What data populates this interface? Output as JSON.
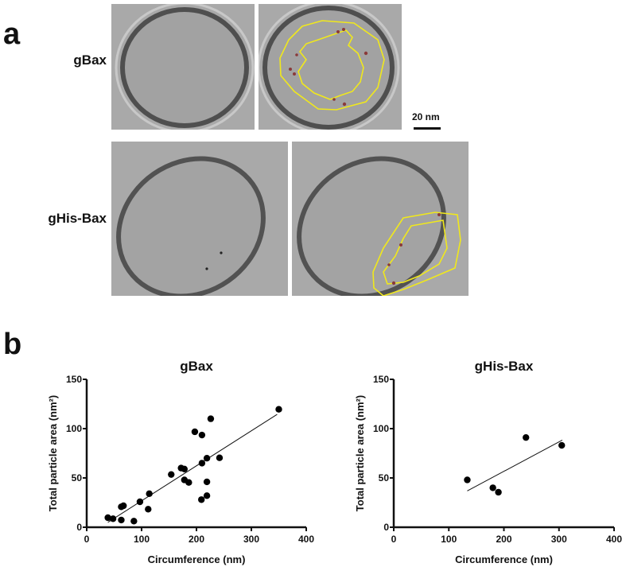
{
  "panel_a": {
    "letter": "a",
    "rows": [
      {
        "label": "gBax"
      },
      {
        "label": "gHis-Bax"
      }
    ],
    "scale_bar": {
      "label": "20 nm"
    },
    "colors": {
      "contour": "#f0e81c",
      "membrane": "#4a4a4a",
      "background": "#a9a9a9",
      "particle": "#8a3a3a"
    }
  },
  "panel_b": {
    "letter": "b"
  },
  "chart_data": [
    {
      "type": "scatter",
      "title": "gBax",
      "xlabel": "Circumference (nm)",
      "ylabel": "Total particle area (nm²)",
      "xlim": [
        0,
        400
      ],
      "ylim": [
        0,
        150
      ],
      "xticks": [
        0,
        100,
        200,
        300,
        400
      ],
      "yticks": [
        0,
        50,
        100,
        150
      ],
      "grid": false,
      "points": [
        [
          38.6,
          9.7
        ],
        [
          48,
          8.6
        ],
        [
          63,
          7.3
        ],
        [
          63,
          20.7
        ],
        [
          67,
          21.8
        ],
        [
          86,
          6.2
        ],
        [
          97,
          25.8
        ],
        [
          112,
          18.3
        ],
        [
          114,
          34
        ],
        [
          154,
          53.5
        ],
        [
          172,
          60
        ],
        [
          178,
          59
        ],
        [
          178,
          48
        ],
        [
          186,
          45.4
        ],
        [
          197,
          96.8
        ],
        [
          210,
          93.5
        ],
        [
          226,
          110
        ],
        [
          210,
          65
        ],
        [
          219,
          70
        ],
        [
          242,
          70.4
        ],
        [
          219,
          46
        ],
        [
          209,
          28
        ],
        [
          219,
          32
        ],
        [
          350,
          119.6
        ]
      ],
      "fit_line": [
        [
          38.6,
          5
        ],
        [
          347,
          114.5
        ]
      ]
    },
    {
      "type": "scatter",
      "title": "gHis-Bax",
      "xlabel": "Circumference (nm)",
      "ylabel": "Total particle area (nm²)",
      "xlim": [
        0,
        400
      ],
      "ylim": [
        0,
        150
      ],
      "xticks": [
        0,
        100,
        200,
        300,
        400
      ],
      "yticks": [
        0,
        50,
        100,
        150
      ],
      "grid": false,
      "points": [
        [
          133.5,
          48
        ],
        [
          180,
          40
        ],
        [
          190,
          35.5
        ],
        [
          240,
          91
        ],
        [
          305,
          83
        ]
      ],
      "fit_line": [
        [
          133.5,
          36.8
        ],
        [
          306,
          88.4
        ]
      ]
    }
  ]
}
